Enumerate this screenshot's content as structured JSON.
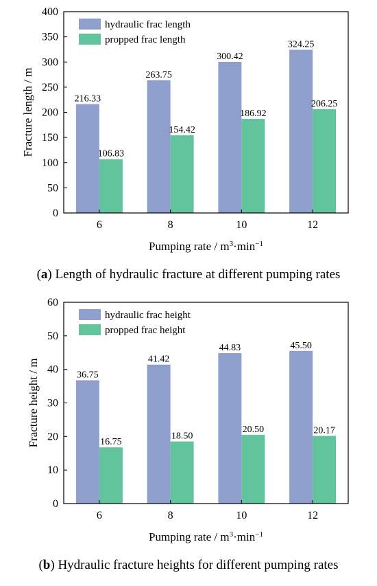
{
  "chart_data": [
    {
      "type": "bar",
      "categories": [
        "6",
        "8",
        "10",
        "12"
      ],
      "series": [
        {
          "name": "hydraulic frac length",
          "values": [
            216.33,
            263.75,
            300.42,
            324.25
          ],
          "value_labels": [
            "216.33",
            "263.75",
            "300.42",
            "324.25"
          ],
          "color": "#8f9fcc"
        },
        {
          "name": "propped frac length",
          "values": [
            106.83,
            154.42,
            186.92,
            206.25
          ],
          "value_labels": [
            "106.83",
            "154.42",
            "186.92",
            "206.25"
          ],
          "color": "#62c49c"
        }
      ],
      "ylim": [
        0,
        400
      ],
      "yticks": [
        0,
        50,
        100,
        150,
        200,
        250,
        300,
        350,
        400
      ],
      "ylabel": "Fracture length / m",
      "xlabel": "Pumping rate / m³·min⁻¹",
      "legend": "top-left",
      "grid": false,
      "caption_tag": "(a)",
      "caption_text": " Length of hydraulic fracture at different pumping rates"
    },
    {
      "type": "bar",
      "categories": [
        "6",
        "8",
        "10",
        "12"
      ],
      "series": [
        {
          "name": "hydraulic frac height",
          "values": [
            36.75,
            41.42,
            44.83,
            45.5
          ],
          "value_labels": [
            "36.75",
            "41.42",
            "44.83",
            "45.50"
          ],
          "color": "#8f9fcc"
        },
        {
          "name": "propped frac height",
          "values": [
            16.75,
            18.5,
            20.5,
            20.17
          ],
          "value_labels": [
            "16.75",
            "18.50",
            "20.50",
            "20.17"
          ],
          "color": "#62c49c"
        }
      ],
      "ylim": [
        0,
        60
      ],
      "yticks": [
        0,
        10,
        20,
        30,
        40,
        50,
        60
      ],
      "ylabel": "Fracture height / m",
      "xlabel": "Pumping rate / m³·min⁻¹",
      "legend": "top-left",
      "grid": false,
      "caption_tag": "(b)",
      "caption_text": " Hydraulic fracture heights for different pumping rates"
    }
  ]
}
